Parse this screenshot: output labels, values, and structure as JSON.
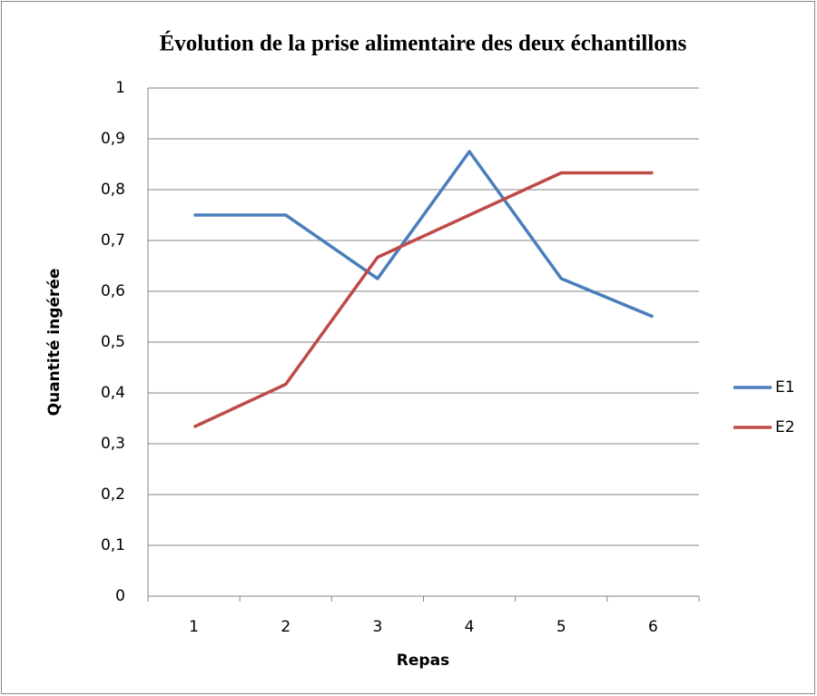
{
  "chart_data": {
    "type": "line",
    "title": "Évolution de la prise alimentaire des deux échantillons",
    "x_label": "Repas",
    "y_label": "Quantité ingérée",
    "categories": [
      "1",
      "2",
      "3",
      "4",
      "5",
      "6"
    ],
    "series": [
      {
        "name": "E1",
        "color": "#4a7ebb",
        "values": [
          0.75,
          0.75,
          0.625,
          0.875,
          0.625,
          0.55
        ]
      },
      {
        "name": "E2",
        "color": "#be4b48",
        "values": [
          0.333,
          0.417,
          0.667,
          0.75,
          0.833,
          0.833
        ]
      }
    ],
    "ylim": [
      0,
      1
    ],
    "yticks": [
      0,
      {
        "value": 0.1,
        "label": "0,1"
      },
      {
        "value": 0.2,
        "label": "0,2"
      },
      {
        "value": 0.3,
        "label": "0,3"
      },
      {
        "value": 0.4,
        "label": "0,4"
      },
      {
        "value": 0.5,
        "label": "0,5"
      },
      {
        "value": 0.6,
        "label": "0,6"
      },
      {
        "value": 0.7,
        "label": "0,7"
      },
      {
        "value": 0.8,
        "label": "0,8"
      },
      {
        "value": 0.9,
        "label": "0,9"
      },
      1
    ],
    "grid": true,
    "legend": "right"
  }
}
